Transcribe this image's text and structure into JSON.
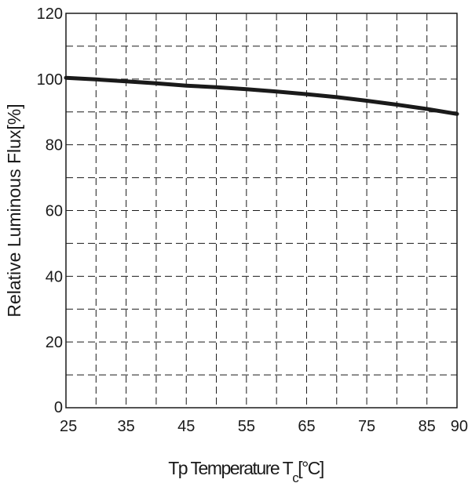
{
  "chart_data": {
    "type": "line",
    "title": "",
    "xlabel": {
      "prefix": "Tp Temperature T",
      "sub": "c",
      "suffix": "[°C]"
    },
    "ylabel": "Relative Luminous Flux[%]",
    "xlim": [
      25,
      90
    ],
    "ylim": [
      0,
      120
    ],
    "x_ticks": [
      25,
      35,
      45,
      55,
      65,
      75,
      85,
      90
    ],
    "x_tick_labels": [
      "25",
      "35",
      "45",
      "55",
      "65",
      "75",
      "85",
      "90"
    ],
    "y_ticks": [
      0,
      20,
      40,
      60,
      80,
      100,
      120
    ],
    "y_tick_labels": [
      "0",
      "20",
      "40",
      "60",
      "80",
      "100",
      "120"
    ],
    "grid": "dashed",
    "x_minor_step": 5,
    "y_minor_step": 10,
    "series": [
      {
        "color": "#1a1a1a",
        "x": [
          25,
          30,
          35,
          40,
          45,
          50,
          55,
          60,
          65,
          70,
          75,
          80,
          85,
          90
        ],
        "y": [
          100.4,
          99.9,
          99.3,
          98.7,
          98.0,
          97.5,
          96.9,
          96.2,
          95.4,
          94.5,
          93.4,
          92.2,
          90.9,
          89.4
        ]
      }
    ]
  }
}
